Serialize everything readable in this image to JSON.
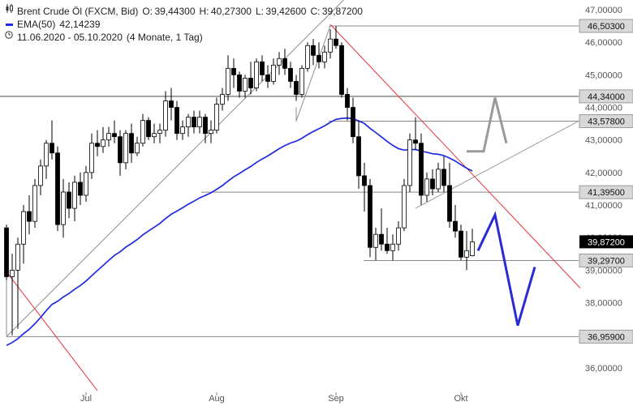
{
  "header": {
    "title": "Brent Crude Öl (FXCM, Bid)",
    "ohlc": {
      "open_label": "O:",
      "open": "39,44300",
      "high_label": "H:",
      "high": "40,27300",
      "low_label": "L:",
      "low": "39,42600",
      "close_label": "C:",
      "close": "39,87200"
    },
    "ema_label": "EMA(50)",
    "ema_value": "42,14239",
    "range": "11.06.2020 - 05.10.2020",
    "range_detail": "(4 Monate, 1 Tag)",
    "icons": [
      "candlestick-icon",
      "line-series-icon",
      "clock-icon"
    ]
  },
  "colors": {
    "bull_candle": "#ffffff",
    "bear_candle": "#000000",
    "ema": "#1f2be0",
    "trendline_red": "#e8323c",
    "support_line": "#888888",
    "projection": "#2b2bd6",
    "current_price_bg": "#000000",
    "level_bg": "#d8d8d8"
  },
  "chart_data": {
    "type": "candlestick",
    "title": "Brent Crude Öl (FXCM, Bid)",
    "period": "1 Tag",
    "y_axis": {
      "ylim": [
        35.4,
        47.2
      ],
      "ticks": [
        "36,00000",
        "37,00000",
        "38,00000",
        "39,00000",
        "40,00000",
        "41,00000",
        "42,00000",
        "43,00000",
        "44,00000",
        "45,00000",
        "46,00000",
        "47,00000"
      ],
      "tick_values": [
        36,
        37,
        38,
        39,
        40,
        41,
        42,
        43,
        44,
        45,
        46,
        47
      ]
    },
    "x_axis": {
      "labels": [
        "Jul",
        "Aug",
        "Sep",
        "Okt"
      ],
      "label_dates": [
        "2020-07-01",
        "2020-08-03",
        "2020-09-01",
        "2020-10-01"
      ]
    },
    "levels": [
      {
        "value": 46.503,
        "label": "46,50300"
      },
      {
        "value": 44.34,
        "label": "44,34000"
      },
      {
        "value": 43.578,
        "label": "43,57800"
      },
      {
        "value": 41.395,
        "label": "41,39500"
      },
      {
        "value": 39.297,
        "label": "39,29700"
      },
      {
        "value": 36.959,
        "label": "36,95900"
      }
    ],
    "current_price": {
      "value": 39.872,
      "label": "39,87200"
    },
    "ema50": {
      "name": "EMA(50)",
      "last": 42.14239
    },
    "candles": [
      {
        "d": "2020-06-11",
        "o": 40.3,
        "h": 40.4,
        "l": 38.7,
        "c": 38.8
      },
      {
        "d": "2020-06-12",
        "o": 38.8,
        "h": 39.5,
        "l": 37.0,
        "c": 39.0
      },
      {
        "d": "2020-06-15",
        "o": 39.0,
        "h": 40.0,
        "l": 37.2,
        "c": 39.8
      },
      {
        "d": "2020-06-16",
        "o": 39.8,
        "h": 41.0,
        "l": 39.2,
        "c": 40.8
      },
      {
        "d": "2020-06-17",
        "o": 40.8,
        "h": 41.3,
        "l": 40.1,
        "c": 40.5
      },
      {
        "d": "2020-06-18",
        "o": 40.5,
        "h": 41.8,
        "l": 40.3,
        "c": 41.6
      },
      {
        "d": "2020-06-19",
        "o": 41.6,
        "h": 42.4,
        "l": 41.3,
        "c": 42.2
      },
      {
        "d": "2020-06-22",
        "o": 42.2,
        "h": 43.0,
        "l": 41.8,
        "c": 42.9
      },
      {
        "d": "2020-06-23",
        "o": 42.9,
        "h": 43.6,
        "l": 42.4,
        "c": 42.6
      },
      {
        "d": "2020-06-24",
        "o": 42.6,
        "h": 42.8,
        "l": 40.2,
        "c": 40.4
      },
      {
        "d": "2020-06-25",
        "o": 40.4,
        "h": 41.8,
        "l": 40.0,
        "c": 41.4
      },
      {
        "d": "2020-06-26",
        "o": 41.4,
        "h": 41.7,
        "l": 40.6,
        "c": 40.9
      },
      {
        "d": "2020-06-29",
        "o": 40.9,
        "h": 41.9,
        "l": 40.5,
        "c": 41.7
      },
      {
        "d": "2020-06-30",
        "o": 41.7,
        "h": 42.0,
        "l": 41.0,
        "c": 41.3
      },
      {
        "d": "2020-07-01",
        "o": 41.3,
        "h": 42.2,
        "l": 41.1,
        "c": 42.0
      },
      {
        "d": "2020-07-02",
        "o": 42.0,
        "h": 43.2,
        "l": 41.8,
        "c": 42.9
      },
      {
        "d": "2020-07-03",
        "o": 42.9,
        "h": 43.3,
        "l": 42.5,
        "c": 42.8
      },
      {
        "d": "2020-07-06",
        "o": 42.8,
        "h": 43.4,
        "l": 42.6,
        "c": 43.0
      },
      {
        "d": "2020-07-07",
        "o": 43.0,
        "h": 43.4,
        "l": 42.8,
        "c": 43.2
      },
      {
        "d": "2020-07-08",
        "o": 43.2,
        "h": 43.6,
        "l": 42.9,
        "c": 43.1
      },
      {
        "d": "2020-07-09",
        "o": 43.1,
        "h": 43.3,
        "l": 41.9,
        "c": 42.3
      },
      {
        "d": "2020-07-10",
        "o": 42.3,
        "h": 43.3,
        "l": 42.1,
        "c": 43.2
      },
      {
        "d": "2020-07-13",
        "o": 43.2,
        "h": 43.5,
        "l": 42.3,
        "c": 42.6
      },
      {
        "d": "2020-07-14",
        "o": 42.6,
        "h": 43.1,
        "l": 42.5,
        "c": 42.9
      },
      {
        "d": "2020-07-15",
        "o": 42.9,
        "h": 43.8,
        "l": 42.8,
        "c": 43.6
      },
      {
        "d": "2020-07-16",
        "o": 43.6,
        "h": 43.7,
        "l": 43.0,
        "c": 43.1
      },
      {
        "d": "2020-07-17",
        "o": 43.1,
        "h": 43.5,
        "l": 42.9,
        "c": 43.2
      },
      {
        "d": "2020-07-20",
        "o": 43.2,
        "h": 43.5,
        "l": 42.9,
        "c": 43.3
      },
      {
        "d": "2020-07-21",
        "o": 43.3,
        "h": 44.5,
        "l": 43.1,
        "c": 44.2
      },
      {
        "d": "2020-07-22",
        "o": 44.2,
        "h": 44.6,
        "l": 43.6,
        "c": 44.0
      },
      {
        "d": "2020-07-23",
        "o": 44.0,
        "h": 44.2,
        "l": 43.0,
        "c": 43.2
      },
      {
        "d": "2020-07-24",
        "o": 43.2,
        "h": 43.6,
        "l": 43.0,
        "c": 43.4
      },
      {
        "d": "2020-07-27",
        "o": 43.4,
        "h": 43.8,
        "l": 43.1,
        "c": 43.7
      },
      {
        "d": "2020-07-28",
        "o": 43.7,
        "h": 43.9,
        "l": 43.2,
        "c": 43.4
      },
      {
        "d": "2020-07-29",
        "o": 43.4,
        "h": 43.9,
        "l": 43.2,
        "c": 43.7
      },
      {
        "d": "2020-07-30",
        "o": 43.7,
        "h": 43.8,
        "l": 42.9,
        "c": 43.2
      },
      {
        "d": "2020-07-31",
        "o": 43.2,
        "h": 43.6,
        "l": 42.9,
        "c": 43.3
      },
      {
        "d": "2020-08-03",
        "o": 43.3,
        "h": 44.3,
        "l": 43.2,
        "c": 44.1
      },
      {
        "d": "2020-08-04",
        "o": 44.1,
        "h": 44.6,
        "l": 43.9,
        "c": 44.4
      },
      {
        "d": "2020-08-05",
        "o": 44.4,
        "h": 45.6,
        "l": 44.2,
        "c": 45.2
      },
      {
        "d": "2020-08-06",
        "o": 45.2,
        "h": 45.5,
        "l": 44.6,
        "c": 45.0
      },
      {
        "d": "2020-08-07",
        "o": 45.0,
        "h": 45.1,
        "l": 44.3,
        "c": 44.5
      },
      {
        "d": "2020-08-10",
        "o": 44.5,
        "h": 45.0,
        "l": 44.3,
        "c": 44.9
      },
      {
        "d": "2020-08-11",
        "o": 44.9,
        "h": 45.4,
        "l": 44.4,
        "c": 44.6
      },
      {
        "d": "2020-08-12",
        "o": 44.6,
        "h": 45.5,
        "l": 44.5,
        "c": 45.4
      },
      {
        "d": "2020-08-13",
        "o": 45.4,
        "h": 45.6,
        "l": 44.8,
        "c": 45.0
      },
      {
        "d": "2020-08-14",
        "o": 45.0,
        "h": 45.3,
        "l": 44.6,
        "c": 44.8
      },
      {
        "d": "2020-08-17",
        "o": 44.8,
        "h": 45.5,
        "l": 44.7,
        "c": 45.3
      },
      {
        "d": "2020-08-18",
        "o": 45.3,
        "h": 45.7,
        "l": 45.0,
        "c": 45.5
      },
      {
        "d": "2020-08-19",
        "o": 45.5,
        "h": 45.8,
        "l": 45.0,
        "c": 45.2
      },
      {
        "d": "2020-08-20",
        "o": 45.2,
        "h": 45.4,
        "l": 44.6,
        "c": 44.8
      },
      {
        "d": "2020-08-21",
        "o": 44.8,
        "h": 45.0,
        "l": 44.2,
        "c": 44.4
      },
      {
        "d": "2020-08-24",
        "o": 44.4,
        "h": 45.3,
        "l": 44.3,
        "c": 45.2
      },
      {
        "d": "2020-08-25",
        "o": 45.2,
        "h": 46.0,
        "l": 45.1,
        "c": 45.9
      },
      {
        "d": "2020-08-26",
        "o": 45.9,
        "h": 46.1,
        "l": 45.3,
        "c": 45.6
      },
      {
        "d": "2020-08-27",
        "o": 45.6,
        "h": 46.0,
        "l": 45.2,
        "c": 45.4
      },
      {
        "d": "2020-08-28",
        "o": 45.4,
        "h": 45.9,
        "l": 45.2,
        "c": 45.7
      },
      {
        "d": "2020-08-31",
        "o": 45.7,
        "h": 46.4,
        "l": 45.5,
        "c": 46.1
      },
      {
        "d": "2020-09-01",
        "o": 46.1,
        "h": 46.5,
        "l": 45.8,
        "c": 45.9
      },
      {
        "d": "2020-09-02",
        "o": 45.9,
        "h": 46.0,
        "l": 44.3,
        "c": 44.4
      },
      {
        "d": "2020-09-03",
        "o": 44.4,
        "h": 44.6,
        "l": 43.6,
        "c": 44.0
      },
      {
        "d": "2020-09-04",
        "o": 44.0,
        "h": 44.3,
        "l": 42.9,
        "c": 43.1
      },
      {
        "d": "2020-09-07",
        "o": 43.1,
        "h": 43.6,
        "l": 41.5,
        "c": 41.9
      },
      {
        "d": "2020-09-08",
        "o": 41.9,
        "h": 42.3,
        "l": 40.8,
        "c": 41.6
      },
      {
        "d": "2020-09-09",
        "o": 41.6,
        "h": 41.8,
        "l": 39.4,
        "c": 39.7
      },
      {
        "d": "2020-09-10",
        "o": 39.7,
        "h": 40.3,
        "l": 39.3,
        "c": 40.1
      },
      {
        "d": "2020-09-11",
        "o": 40.1,
        "h": 40.9,
        "l": 39.6,
        "c": 39.8
      },
      {
        "d": "2020-09-14",
        "o": 39.8,
        "h": 40.3,
        "l": 39.5,
        "c": 39.6
      },
      {
        "d": "2020-09-15",
        "o": 39.6,
        "h": 40.1,
        "l": 39.3,
        "c": 39.8
      },
      {
        "d": "2020-09-16",
        "o": 39.8,
        "h": 40.5,
        "l": 39.6,
        "c": 40.3
      },
      {
        "d": "2020-09-17",
        "o": 40.3,
        "h": 41.8,
        "l": 40.2,
        "c": 41.6
      },
      {
        "d": "2020-09-18",
        "o": 41.6,
        "h": 43.2,
        "l": 41.4,
        "c": 43.0
      },
      {
        "d": "2020-09-21",
        "o": 43.0,
        "h": 43.7,
        "l": 42.7,
        "c": 42.9
      },
      {
        "d": "2020-09-22",
        "o": 42.9,
        "h": 43.2,
        "l": 41.0,
        "c": 41.3
      },
      {
        "d": "2020-09-23",
        "o": 41.3,
        "h": 42.0,
        "l": 41.1,
        "c": 41.8
      },
      {
        "d": "2020-09-24",
        "o": 41.8,
        "h": 42.1,
        "l": 41.3,
        "c": 41.5
      },
      {
        "d": "2020-09-25",
        "o": 41.5,
        "h": 42.3,
        "l": 41.4,
        "c": 42.1
      },
      {
        "d": "2020-09-28",
        "o": 42.1,
        "h": 42.5,
        "l": 41.4,
        "c": 41.6
      },
      {
        "d": "2020-09-29",
        "o": 41.6,
        "h": 42.3,
        "l": 40.3,
        "c": 40.5
      },
      {
        "d": "2020-09-30",
        "o": 40.5,
        "h": 41.0,
        "l": 40.0,
        "c": 40.2
      },
      {
        "d": "2020-10-01",
        "o": 40.2,
        "h": 40.4,
        "l": 39.3,
        "c": 39.4
      },
      {
        "d": "2020-10-02",
        "o": 39.4,
        "h": 40.2,
        "l": 39.0,
        "c": 39.6
      },
      {
        "d": "2020-10-05",
        "o": 39.443,
        "h": 40.273,
        "l": 39.426,
        "c": 39.872
      }
    ]
  }
}
